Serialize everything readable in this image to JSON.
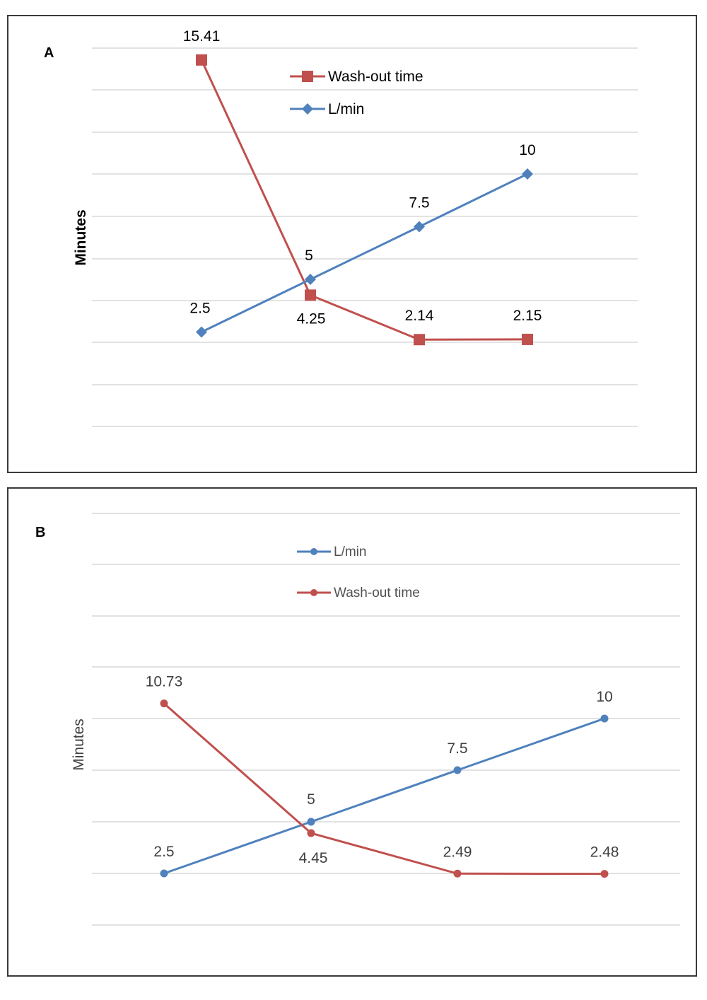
{
  "chart_data": [
    {
      "type": "line",
      "panel_label": "A",
      "ylabel": "Minutes",
      "xlabel": "",
      "x": [
        1,
        2,
        3,
        4
      ],
      "ylim": [
        -2,
        16
      ],
      "grid": true,
      "legend_position": "top-center",
      "series": [
        {
          "name": "Wash-out time",
          "values": [
            15.41,
            4.25,
            2.14,
            2.15
          ],
          "labels": [
            "15.41",
            "4.25",
            "2.14",
            "2.15"
          ],
          "color": "#c0504d",
          "marker": "square"
        },
        {
          "name": "L/min",
          "values": [
            2.5,
            5,
            7.5,
            10
          ],
          "labels": [
            "2.5",
            "5",
            "7.5",
            "10"
          ],
          "color": "#4f81bd",
          "marker": "diamond"
        }
      ]
    },
    {
      "type": "line",
      "panel_label": "B",
      "ylabel": "Minutes",
      "xlabel": "",
      "x": [
        1,
        2,
        3,
        4
      ],
      "ylim": [
        0,
        20
      ],
      "grid": true,
      "legend_position": "top-center",
      "series": [
        {
          "name": "L/min",
          "values": [
            2.5,
            5,
            7.5,
            10
          ],
          "labels": [
            "2.5",
            "5",
            "7.5",
            "10"
          ],
          "color": "#4f81bd",
          "marker": "circle"
        },
        {
          "name": "Wash-out time",
          "values": [
            10.73,
            4.45,
            2.49,
            2.48
          ],
          "labels": [
            "10.73",
            "4.45",
            "2.49",
            "2.48"
          ],
          "color": "#c0504d",
          "marker": "circle"
        }
      ]
    }
  ]
}
